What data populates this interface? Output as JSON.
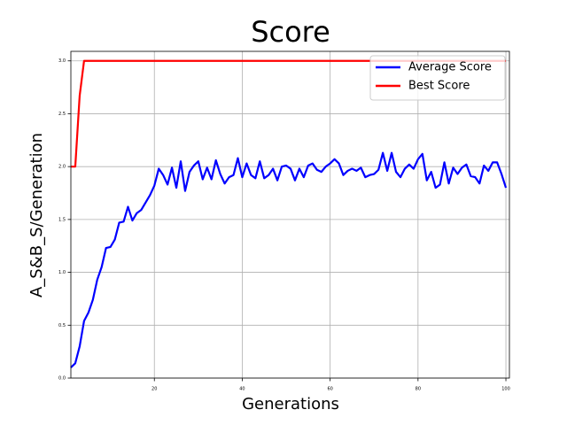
{
  "chart_data": {
    "type": "line",
    "title": "Score",
    "x_label": "Generations",
    "y_label": "A_S&B_S/Generation",
    "x": [
      1,
      2,
      3,
      4,
      5,
      6,
      7,
      8,
      9,
      10,
      11,
      12,
      13,
      14,
      15,
      16,
      17,
      18,
      19,
      20,
      21,
      22,
      23,
      24,
      25,
      26,
      27,
      28,
      29,
      30,
      31,
      32,
      33,
      34,
      35,
      36,
      37,
      38,
      39,
      40,
      41,
      42,
      43,
      44,
      45,
      46,
      47,
      48,
      49,
      50,
      51,
      52,
      53,
      54,
      55,
      56,
      57,
      58,
      59,
      60,
      61,
      62,
      63,
      64,
      65,
      66,
      67,
      68,
      69,
      70,
      71,
      72,
      73,
      74,
      75,
      76,
      77,
      78,
      79,
      80,
      81,
      82,
      83,
      84,
      85,
      86,
      87,
      88,
      89,
      90,
      91,
      92,
      93,
      94,
      95,
      96,
      97,
      98,
      99,
      100
    ],
    "series": [
      {
        "name": "Average Score",
        "color": "#0000ff",
        "values": [
          0.1,
          0.14,
          0.3,
          0.54,
          0.62,
          0.74,
          0.93,
          1.05,
          1.23,
          1.24,
          1.31,
          1.47,
          1.48,
          1.62,
          1.49,
          1.56,
          1.59,
          1.66,
          1.73,
          1.82,
          1.98,
          1.92,
          1.83,
          1.99,
          1.8,
          2.05,
          1.77,
          1.95,
          2.01,
          2.05,
          1.88,
          1.99,
          1.88,
          2.06,
          1.93,
          1.84,
          1.9,
          1.92,
          2.08,
          1.9,
          2.03,
          1.92,
          1.89,
          2.05,
          1.89,
          1.92,
          1.98,
          1.87,
          2.0,
          2.01,
          1.98,
          1.87,
          1.98,
          1.9,
          2.01,
          2.03,
          1.97,
          1.95,
          2.0,
          2.03,
          2.07,
          2.03,
          1.92,
          1.96,
          1.98,
          1.96,
          1.99,
          1.9,
          1.92,
          1.93,
          1.97,
          2.13,
          1.96,
          2.13,
          1.95,
          1.9,
          1.98,
          2.02,
          1.98,
          2.07,
          2.12,
          1.87,
          1.95,
          1.8,
          1.83,
          2.04,
          1.84,
          1.99,
          1.93,
          1.99,
          2.02,
          1.91,
          1.9,
          1.84,
          2.01,
          1.96,
          2.04,
          2.04,
          1.93,
          1.8
        ]
      },
      {
        "name": "Best Score",
        "color": "#ff0000",
        "values": [
          2.0,
          2.0,
          2.67,
          3.0,
          3.0,
          3.0,
          3.0,
          3.0,
          3.0,
          3.0,
          3.0,
          3.0,
          3.0,
          3.0,
          3.0,
          3.0,
          3.0,
          3.0,
          3.0,
          3.0,
          3.0,
          3.0,
          3.0,
          3.0,
          3.0,
          3.0,
          3.0,
          3.0,
          3.0,
          3.0,
          3.0,
          3.0,
          3.0,
          3.0,
          3.0,
          3.0,
          3.0,
          3.0,
          3.0,
          3.0,
          3.0,
          3.0,
          3.0,
          3.0,
          3.0,
          3.0,
          3.0,
          3.0,
          3.0,
          3.0,
          3.0,
          3.0,
          3.0,
          3.0,
          3.0,
          3.0,
          3.0,
          3.0,
          3.0,
          3.0,
          3.0,
          3.0,
          3.0,
          3.0,
          3.0,
          3.0,
          3.0,
          3.0,
          3.0,
          3.0,
          3.0,
          3.0,
          3.0,
          3.0,
          3.0,
          3.0,
          3.0,
          3.0,
          3.0,
          3.0,
          3.0,
          3.0,
          3.0,
          3.0,
          3.0,
          3.0,
          3.0,
          3.0,
          3.0,
          3.0,
          3.0,
          3.0,
          3.0,
          3.0,
          3.0,
          3.0,
          3.0,
          3.0,
          3.0,
          3.0
        ]
      }
    ],
    "xlim": [
      1,
      100.8
    ],
    "ylim": [
      0,
      3.09
    ],
    "xticks": [
      20,
      40,
      60,
      80,
      100
    ],
    "yticks": [
      {
        "value": 0,
        "label": "0.0"
      },
      {
        "value": 0.5,
        "label": "0.5"
      },
      {
        "value": 1,
        "label": "1.0"
      },
      {
        "value": 1.5,
        "label": "1.5"
      },
      {
        "value": 2,
        "label": "2.0"
      },
      {
        "value": 2.5,
        "label": "2.5"
      },
      {
        "value": 3,
        "label": "3.0"
      }
    ],
    "grid": true,
    "legend": "upper-right"
  }
}
